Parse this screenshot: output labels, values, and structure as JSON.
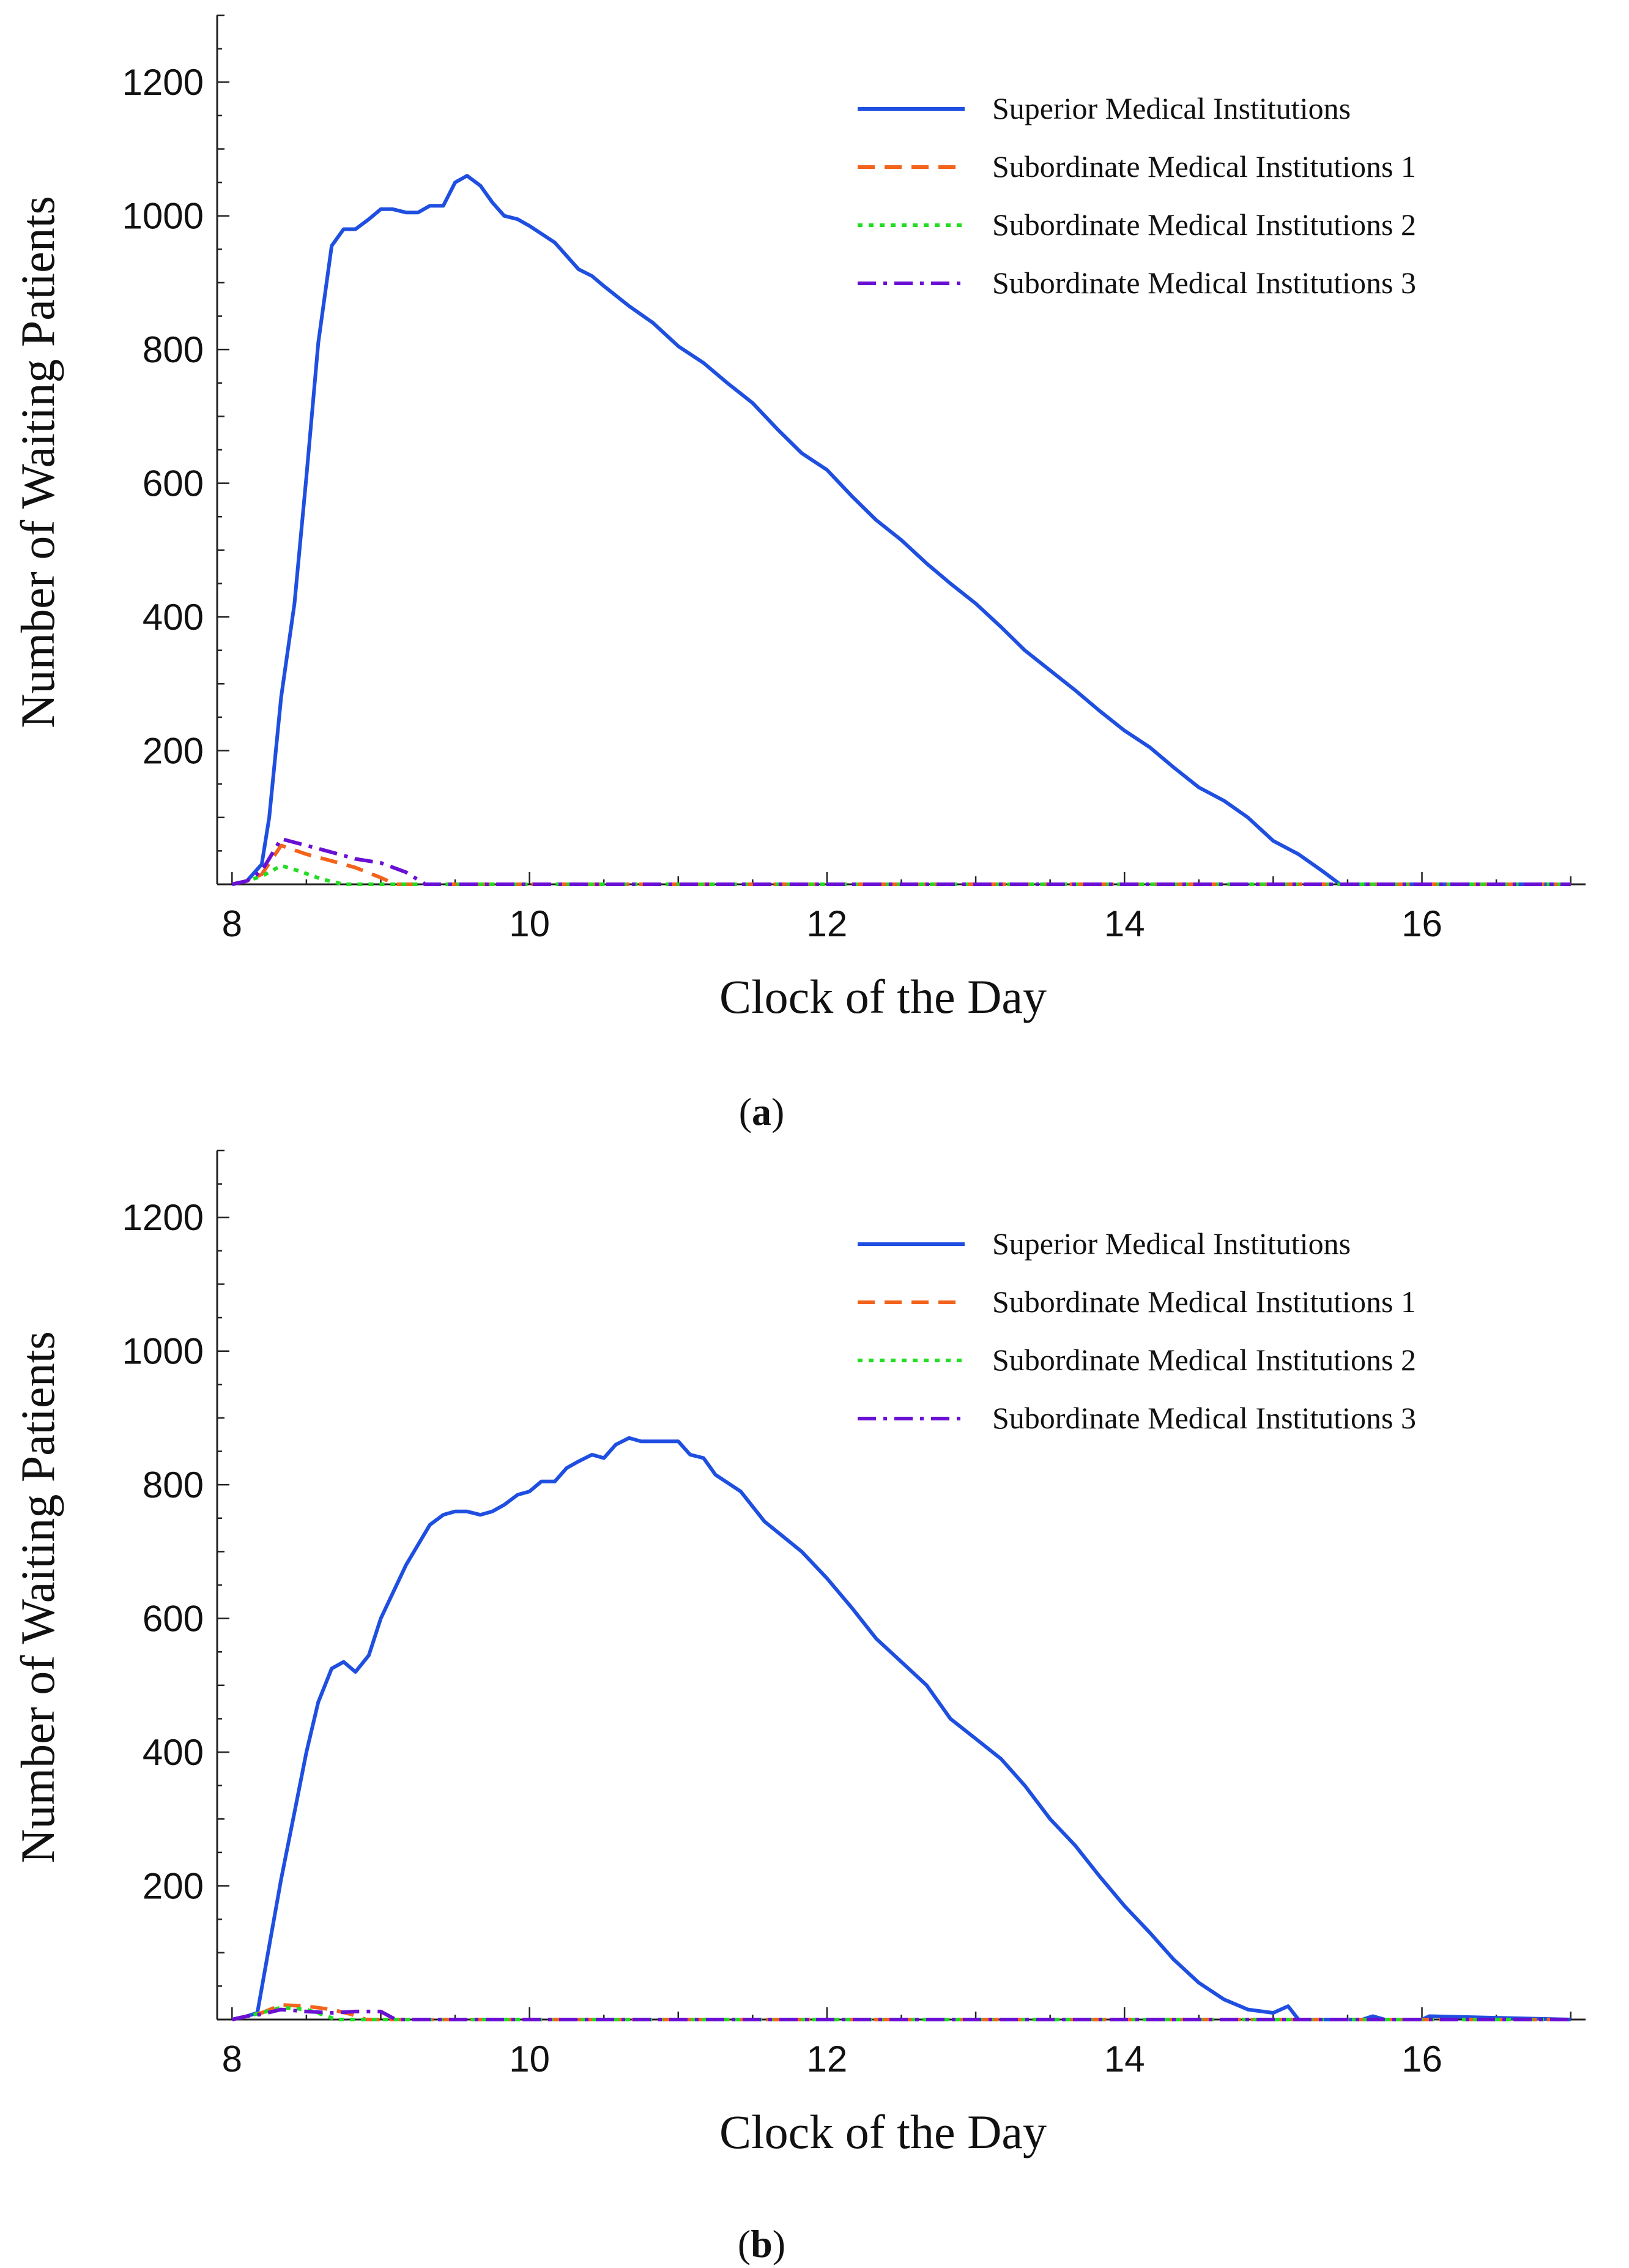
{
  "chart_data": [
    {
      "type": "line",
      "panel_label": "a",
      "xlabel": "Clock of the Day",
      "ylabel": "Number of Waiting Patients",
      "xlim": [
        7.9,
        17.1
      ],
      "ylim": [
        0,
        1300
      ],
      "xticks": [
        8,
        10,
        12,
        14,
        16
      ],
      "yticks": [
        200,
        400,
        600,
        800,
        1000,
        1200
      ],
      "grid": false,
      "legend_position": "top-right",
      "series": [
        {
          "name": "Superior Medical Institutions",
          "color": "#1f4fe0",
          "dash": "solid",
          "x": [
            8.0,
            8.1,
            8.2,
            8.25,
            8.33,
            8.42,
            8.5,
            8.58,
            8.67,
            8.75,
            8.83,
            8.92,
            9.0,
            9.08,
            9.17,
            9.25,
            9.33,
            9.42,
            9.5,
            9.58,
            9.67,
            9.75,
            9.83,
            9.92,
            10.0,
            10.17,
            10.33,
            10.42,
            10.5,
            10.67,
            10.83,
            11.0,
            11.17,
            11.33,
            11.5,
            11.67,
            11.83,
            12.0,
            12.17,
            12.33,
            12.5,
            12.67,
            12.83,
            13.0,
            13.17,
            13.33,
            13.5,
            13.67,
            13.83,
            14.0,
            14.17,
            14.33,
            14.5,
            14.67,
            14.83,
            15.0,
            15.17,
            15.33,
            15.45,
            16.0,
            17.0
          ],
          "y": [
            0,
            5,
            30,
            100,
            280,
            420,
            610,
            810,
            955,
            980,
            980,
            995,
            1010,
            1010,
            1005,
            1005,
            1015,
            1015,
            1050,
            1060,
            1045,
            1020,
            1000,
            995,
            985,
            960,
            920,
            910,
            895,
            865,
            840,
            805,
            780,
            750,
            720,
            680,
            645,
            620,
            580,
            545,
            515,
            480,
            450,
            420,
            385,
            350,
            320,
            290,
            260,
            230,
            205,
            175,
            145,
            125,
            100,
            65,
            45,
            20,
            0,
            0,
            0
          ]
        },
        {
          "name": "Subordinate Medical Institutions 1",
          "color": "#f4631c",
          "dash": "dashed",
          "x": [
            8.0,
            8.1,
            8.2,
            8.33,
            8.5,
            8.67,
            8.83,
            9.0,
            9.1,
            9.2,
            17.0
          ],
          "y": [
            0,
            5,
            15,
            58,
            45,
            35,
            25,
            10,
            0,
            0,
            0
          ]
        },
        {
          "name": "Subordinate Medical Institutions 2",
          "color": "#22dd22",
          "dash": "dotted",
          "x": [
            8.0,
            8.1,
            8.2,
            8.33,
            8.45,
            8.6,
            8.75,
            9.0,
            17.0
          ],
          "y": [
            0,
            5,
            12,
            28,
            20,
            8,
            0,
            0,
            0
          ]
        },
        {
          "name": "Subordinate Medical Institutions 3",
          "color": "#6a0fd4",
          "dash": "dashdot",
          "x": [
            8.0,
            8.1,
            8.2,
            8.33,
            8.5,
            8.67,
            8.83,
            9.0,
            9.17,
            9.3,
            17.0
          ],
          "y": [
            0,
            5,
            20,
            68,
            58,
            48,
            38,
            32,
            18,
            0,
            0
          ]
        }
      ]
    },
    {
      "type": "line",
      "panel_label": "b",
      "xlabel": "Clock of the Day",
      "ylabel": "Number of Waiting Patients",
      "xlim": [
        7.9,
        17.1
      ],
      "ylim": [
        0,
        1300
      ],
      "xticks": [
        8,
        10,
        12,
        14,
        16
      ],
      "yticks": [
        200,
        400,
        600,
        800,
        1000,
        1200
      ],
      "grid": false,
      "legend_position": "top-right",
      "series": [
        {
          "name": "Superior Medical Institutions",
          "color": "#1f4fe0",
          "dash": "solid",
          "x": [
            8.0,
            8.1,
            8.17,
            8.25,
            8.33,
            8.42,
            8.5,
            8.58,
            8.67,
            8.75,
            8.83,
            8.92,
            9.0,
            9.17,
            9.33,
            9.42,
            9.5,
            9.58,
            9.67,
            9.75,
            9.83,
            9.92,
            10.0,
            10.08,
            10.17,
            10.25,
            10.33,
            10.42,
            10.5,
            10.58,
            10.67,
            10.75,
            10.83,
            11.0,
            11.08,
            11.17,
            11.25,
            11.42,
            11.58,
            11.83,
            12.0,
            12.17,
            12.33,
            12.5,
            12.67,
            12.83,
            13.0,
            13.17,
            13.33,
            13.5,
            13.67,
            13.83,
            14.0,
            14.17,
            14.33,
            14.5,
            14.67,
            14.83,
            15.0,
            15.1,
            15.17,
            15.6,
            15.67,
            15.75,
            16.0,
            16.05,
            17.0
          ],
          "y": [
            0,
            5,
            10,
            110,
            210,
            310,
            400,
            475,
            525,
            535,
            520,
            545,
            600,
            680,
            740,
            755,
            760,
            760,
            755,
            760,
            770,
            785,
            790,
            805,
            805,
            825,
            835,
            845,
            840,
            860,
            870,
            865,
            865,
            865,
            845,
            840,
            815,
            790,
            745,
            700,
            660,
            615,
            570,
            535,
            500,
            450,
            420,
            390,
            350,
            300,
            260,
            215,
            170,
            130,
            90,
            55,
            30,
            15,
            10,
            20,
            0,
            0,
            5,
            0,
            0,
            5,
            0
          ]
        },
        {
          "name": "Subordinate Medical Institutions 1",
          "color": "#f4631c",
          "dash": "dashed",
          "x": [
            8.0,
            8.1,
            8.2,
            8.33,
            8.5,
            8.67,
            8.8,
            8.9,
            17.0
          ],
          "y": [
            0,
            5,
            10,
            22,
            20,
            15,
            8,
            0,
            0
          ]
        },
        {
          "name": "Subordinate Medical Institutions 2",
          "color": "#22dd22",
          "dash": "dotted",
          "x": [
            8.0,
            8.1,
            8.2,
            8.33,
            8.5,
            8.6,
            8.7,
            17.0
          ],
          "y": [
            0,
            5,
            10,
            18,
            15,
            8,
            0,
            0
          ]
        },
        {
          "name": "Subordinate Medical Institutions 3",
          "color": "#6a0fd4",
          "dash": "dashdot",
          "x": [
            8.0,
            8.1,
            8.2,
            8.33,
            8.5,
            8.67,
            8.83,
            9.0,
            9.1,
            17.0
          ],
          "y": [
            0,
            5,
            8,
            15,
            12,
            10,
            12,
            12,
            0,
            0
          ]
        }
      ]
    }
  ]
}
